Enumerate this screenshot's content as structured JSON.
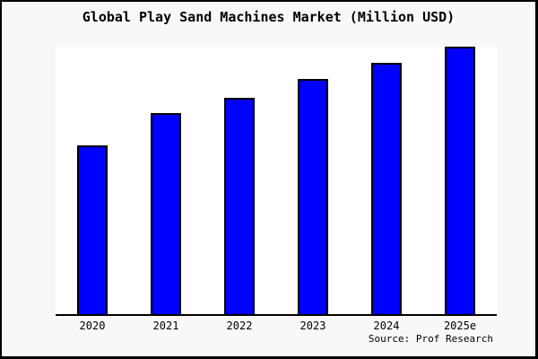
{
  "chart_data": {
    "type": "bar",
    "title": "Global Play Sand Machines Market (Million USD)",
    "categories": [
      "2020",
      "2021",
      "2022",
      "2023",
      "2024",
      "2025e"
    ],
    "values": [
      63,
      75,
      81,
      88,
      94,
      100
    ],
    "xlabel": "",
    "ylabel": "",
    "ylim": [
      0,
      100
    ],
    "y_axis_visible": false,
    "grid": false,
    "legend": false,
    "bar_color": "#0000ff",
    "bar_edge_color": "#000000",
    "plot_background": "#ffffff",
    "figure_background": "#f8f8f8",
    "axis_color": "#000000"
  },
  "footer": {
    "source": "Source: Prof Research"
  }
}
